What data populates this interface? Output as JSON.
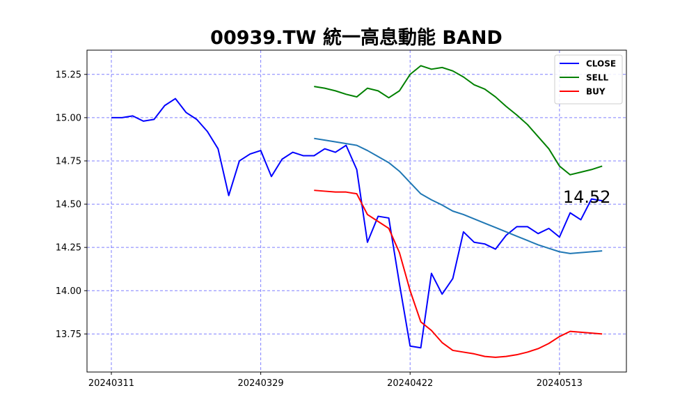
{
  "chart_data": {
    "type": "line",
    "title": "00939.TW 統一高息動能 BAND",
    "xlabel": "",
    "ylabel": "",
    "ylim": [
      13.53,
      15.39
    ],
    "grid": true,
    "legend_position": "top-right",
    "y_ticks": [
      "13.75",
      "14.00",
      "14.25",
      "14.50",
      "14.75",
      "15.00",
      "15.25"
    ],
    "x_tick_labels": [
      {
        "index": 0,
        "label": "20240311"
      },
      {
        "index": 14,
        "label": "20240329"
      },
      {
        "index": 28,
        "label": "20240422"
      },
      {
        "index": 42,
        "label": "20240513"
      }
    ],
    "annotation": {
      "text": "14.52",
      "index": 46,
      "value": 14.52
    },
    "series": [
      {
        "name": "CLOSE",
        "color": "#0000ff",
        "legend": true,
        "start": 0,
        "values": [
          15.0,
          15.0,
          15.01,
          14.98,
          14.99,
          15.07,
          15.11,
          15.03,
          14.99,
          14.92,
          14.82,
          14.55,
          14.75,
          14.79,
          14.81,
          14.66,
          14.76,
          14.8,
          14.78,
          14.78,
          14.82,
          14.8,
          14.84,
          14.7,
          14.28,
          14.43,
          14.42,
          14.04,
          13.68,
          13.67,
          14.1,
          13.98,
          14.07,
          14.34,
          14.28,
          14.27,
          14.24,
          14.32,
          14.37,
          14.37,
          14.33,
          14.36,
          14.31,
          14.45,
          14.41,
          14.53,
          14.52
        ]
      },
      {
        "name": "SELL",
        "color": "#008000",
        "legend": true,
        "start": 19,
        "values": [
          15.18,
          15.17,
          15.155,
          15.135,
          15.12,
          15.17,
          15.155,
          15.115,
          15.155,
          15.25,
          15.3,
          15.28,
          15.29,
          15.27,
          15.235,
          15.19,
          15.165,
          15.12,
          15.065,
          15.015,
          14.96,
          14.89,
          14.82,
          14.72,
          14.67,
          14.685,
          14.7,
          14.72
        ]
      },
      {
        "name": "BUY",
        "color": "#ff0000",
        "legend": true,
        "start": 19,
        "values": [
          14.58,
          14.575,
          14.57,
          14.57,
          14.56,
          14.44,
          14.4,
          14.36,
          14.22,
          14.0,
          13.82,
          13.77,
          13.7,
          13.655,
          13.645,
          13.635,
          13.62,
          13.615,
          13.62,
          13.63,
          13.645,
          13.665,
          13.695,
          13.735,
          13.765,
          13.76,
          13.755,
          13.75
        ]
      },
      {
        "color": "#1f77b4",
        "legend": false,
        "start": 19,
        "values": [
          14.88,
          14.87,
          14.86,
          14.85,
          14.84,
          14.81,
          14.775,
          14.74,
          14.69,
          14.625,
          14.56,
          14.525,
          14.495,
          14.46,
          14.44,
          14.415,
          14.39,
          14.365,
          14.34,
          14.315,
          14.29,
          14.265,
          14.245,
          14.225,
          14.215,
          14.22,
          14.225,
          14.23
        ]
      }
    ]
  }
}
